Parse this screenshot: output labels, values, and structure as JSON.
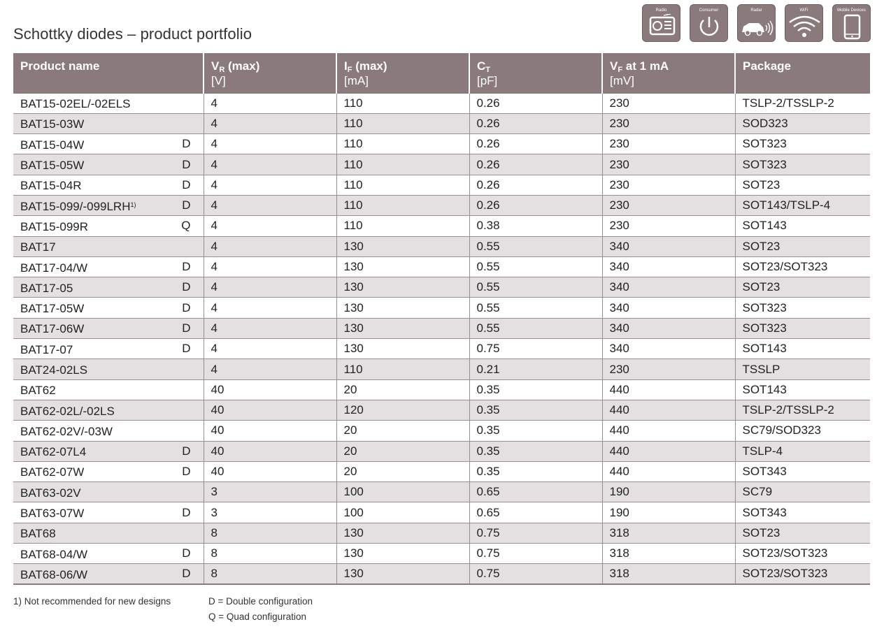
{
  "title": "Schottky diodes – product portfolio",
  "icons": [
    {
      "label": "Radio",
      "icon": "radio-icon"
    },
    {
      "label": "Consumer",
      "icon": "power-icon"
    },
    {
      "label": "Radar",
      "icon": "car-radar-icon"
    },
    {
      "label": "WiFi",
      "icon": "wifi-icon"
    },
    {
      "label": "Mobile Devices",
      "icon": "mobile-device-icon"
    }
  ],
  "colors": {
    "header_bg": "#8a7a7c",
    "row_alt": "#e4dfe0",
    "border": "#9a8f90"
  },
  "table": {
    "headers": {
      "name": "Product name",
      "vr_main": "V",
      "vr_sub": "R",
      "vr_rest": " (max)",
      "vr_unit": "[V]",
      "if_main": "I",
      "if_sub": "F",
      "if_rest": " (max)",
      "if_unit": "[mA]",
      "ct_main": "C",
      "ct_sub": "T",
      "ct_rest": "",
      "ct_unit": "[pF]",
      "vf_main": "V",
      "vf_sub": "F",
      "vf_rest": " at 1 mA",
      "vf_unit": "[mV]",
      "package": "Package"
    },
    "rows": [
      {
        "name": "BAT15-02EL/-02ELS",
        "note": "",
        "cfg": "",
        "vr": "4",
        "if": "110",
        "ct": "0.26",
        "vf": "230",
        "pkg": "TSLP-2/TSSLP-2"
      },
      {
        "name": "BAT15-03W",
        "note": "",
        "cfg": "",
        "vr": "4",
        "if": "110",
        "ct": "0.26",
        "vf": "230",
        "pkg": "SOD323"
      },
      {
        "name": "BAT15-04W",
        "note": "",
        "cfg": "D",
        "vr": "4",
        "if": "110",
        "ct": "0.26",
        "vf": "230",
        "pkg": "SOT323"
      },
      {
        "name": "BAT15-05W",
        "note": "",
        "cfg": "D",
        "vr": "4",
        "if": "110",
        "ct": "0.26",
        "vf": "230",
        "pkg": "SOT323"
      },
      {
        "name": "BAT15-04R",
        "note": "",
        "cfg": "D",
        "vr": "4",
        "if": "110",
        "ct": "0.26",
        "vf": "230",
        "pkg": "SOT23"
      },
      {
        "name": "BAT15-099/-099LRH",
        "note": "1)",
        "cfg": "D",
        "vr": "4",
        "if": "110",
        "ct": "0.26",
        "vf": "230",
        "pkg": "SOT143/TSLP-4"
      },
      {
        "name": "BAT15-099R",
        "note": "",
        "cfg": "Q",
        "vr": "4",
        "if": "110",
        "ct": "0.38",
        "vf": "230",
        "pkg": "SOT143"
      },
      {
        "name": "BAT17",
        "note": "",
        "cfg": "",
        "vr": "4",
        "if": "130",
        "ct": "0.55",
        "vf": "340",
        "pkg": "SOT23"
      },
      {
        "name": "BAT17-04/W",
        "note": "",
        "cfg": "D",
        "vr": "4",
        "if": "130",
        "ct": "0.55",
        "vf": "340",
        "pkg": "SOT23/SOT323"
      },
      {
        "name": "BAT17-05",
        "note": "",
        "cfg": "D",
        "vr": "4",
        "if": "130",
        "ct": "0.55",
        "vf": "340",
        "pkg": "SOT23"
      },
      {
        "name": "BAT17-05W",
        "note": "",
        "cfg": "D",
        "vr": "4",
        "if": "130",
        "ct": "0.55",
        "vf": "340",
        "pkg": "SOT323"
      },
      {
        "name": "BAT17-06W",
        "note": "",
        "cfg": "D",
        "vr": "4",
        "if": "130",
        "ct": "0.55",
        "vf": "340",
        "pkg": "SOT323"
      },
      {
        "name": "BAT17-07",
        "note": "",
        "cfg": "D",
        "vr": "4",
        "if": "130",
        "ct": "0.75",
        "vf": "340",
        "pkg": "SOT143"
      },
      {
        "name": "BAT24-02LS",
        "note": "",
        "cfg": "",
        "vr": "4",
        "if": "110",
        "ct": "0.21",
        "vf": "230",
        "pkg": "TSSLP"
      },
      {
        "name": "BAT62",
        "note": "",
        "cfg": "",
        "vr": "40",
        "if": "20",
        "ct": "0.35",
        "vf": "440",
        "pkg": "SOT143"
      },
      {
        "name": "BAT62-02L/-02LS",
        "note": "",
        "cfg": "",
        "vr": "40",
        "if": "120",
        "ct": "0.35",
        "vf": "440",
        "pkg": "TSLP-2/TSSLP-2"
      },
      {
        "name": "BAT62-02V/-03W",
        "note": "",
        "cfg": "",
        "vr": "40",
        "if": "20",
        "ct": "0.35",
        "vf": "440",
        "pkg": "SC79/SOD323"
      },
      {
        "name": "BAT62-07L4",
        "note": "",
        "cfg": "D",
        "vr": "40",
        "if": "20",
        "ct": "0.35",
        "vf": "440",
        "pkg": "TSLP-4"
      },
      {
        "name": "BAT62-07W",
        "note": "",
        "cfg": "D",
        "vr": "40",
        "if": "20",
        "ct": "0.35",
        "vf": "440",
        "pkg": "SOT343"
      },
      {
        "name": "BAT63-02V",
        "note": "",
        "cfg": "",
        "vr": "3",
        "if": "100",
        "ct": "0.65",
        "vf": "190",
        "pkg": "SC79"
      },
      {
        "name": "BAT63-07W",
        "note": "",
        "cfg": "D",
        "vr": "3",
        "if": "100",
        "ct": "0.65",
        "vf": "190",
        "pkg": "SOT343"
      },
      {
        "name": "BAT68",
        "note": "",
        "cfg": "",
        "vr": "8",
        "if": "130",
        "ct": "0.75",
        "vf": "318",
        "pkg": "SOT23"
      },
      {
        "name": "BAT68-04/W",
        "note": "",
        "cfg": "D",
        "vr": "8",
        "if": "130",
        "ct": "0.75",
        "vf": "318",
        "pkg": "SOT23/SOT323"
      },
      {
        "name": "BAT68-06/W",
        "note": "",
        "cfg": "D",
        "vr": "8",
        "if": "130",
        "ct": "0.75",
        "vf": "318",
        "pkg": "SOT23/SOT323"
      }
    ]
  },
  "footnotes": {
    "note1": "1) Not recommended for new designs",
    "double": "D = Double configuration",
    "quad": "Q = Quad configuration"
  }
}
